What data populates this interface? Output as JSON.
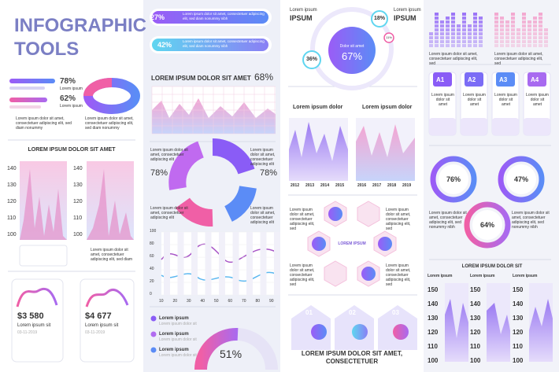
{
  "header": {
    "title": "INFOGRAPHIC TOOLS"
  },
  "stats": {
    "items": [
      {
        "value": "78%",
        "label": "Lorem ipsum"
      },
      {
        "value": "62%",
        "label": "Lorem ipsum"
      }
    ],
    "text": "Lorem ipsum dolor sit amet, consectetuer adipiscing elit, sed diam nonummy"
  },
  "tall_bars": {
    "title": "LOREM IPSUM DOLOR SIT AMET",
    "yticks": [
      140,
      130,
      120,
      110,
      100
    ],
    "text": "Lorem ipsum dolor sit amet, consectetuer adipiscing elit, sed diam"
  },
  "cards": [
    {
      "amount": "$3 580",
      "label": "Lorem ipsum sit",
      "date": "03-11-2019"
    },
    {
      "amount": "$4 677",
      "label": "Lorem ipsum sit",
      "date": "03-11-2019"
    }
  ],
  "pills": [
    {
      "value": "27%",
      "text": "Lorem ipsum dolor sit amet, consectetuer adipiscing elit, sed diam nonummy nibh"
    },
    {
      "value": "42%",
      "text": "Lorem ipsum dolor sit amet, consectetuer adipiscing elit, sed diam nonummy nibh"
    }
  ],
  "wave": {
    "title": "LOREM IPSUM DOLOR SIT AMET",
    "value": "68%"
  },
  "donut": {
    "left": "78%",
    "right": "78%",
    "text": "Lorem ipsum dolor sit amet, consectetuer adipiscing elit"
  },
  "line_chart": {
    "xticks": [
      10,
      20,
      30,
      40,
      50,
      60,
      70,
      80,
      90
    ],
    "yticks": [
      100,
      80,
      60,
      40,
      20,
      0
    ],
    "text": "Lorem ipsum dolor sit amet, consectetuer adipiscing elit, sed diam"
  },
  "legend": {
    "items": [
      "Lorem ipsum",
      "Lorem ipsum",
      "Lorem ipsum"
    ],
    "sub": "Lorem ipsum dolor sit",
    "value": "51%"
  },
  "hub": {
    "label": "Lorem ipsum",
    "title": "IPSUM",
    "center_text": "Dolor sit amet",
    "center": "67%",
    "small": [
      "36%",
      "18%",
      "11%"
    ]
  },
  "areas": [
    {
      "title": "Lorem ipsum dolor",
      "years": [
        "2012",
        "2013",
        "2014",
        "2015"
      ]
    },
    {
      "title": "Lorem ipsum dolor",
      "years": [
        "2016",
        "2017",
        "2018",
        "2019"
      ]
    }
  ],
  "hexagons": {
    "title": "LOREM IPSUM",
    "text": "Lorem ipsum dolor sit amet, consectetuer adipiscing elit, sed"
  },
  "steps": {
    "numbers": [
      "01",
      "02",
      "03"
    ],
    "title": "LOREM IPSUM DOLOR SIT AMET,",
    "subtitle": "CONSECTETUER"
  },
  "bar_panels": {
    "text": "Lorem ipsum dolor sit amet, consectetuer adipiscing elit, sed"
  },
  "tabs": {
    "labels": [
      "A1",
      "A2",
      "A3",
      "A4"
    ],
    "text": "Lorem ipsum dolor sit amet"
  },
  "gears": {
    "values": [
      "76%",
      "47%",
      "64%"
    ],
    "text": "Lorem ipsum dolor sit amet, consectetuer adipiscing elit, sed nonummy nibh"
  },
  "columns": {
    "title": "LOREM IPSUM DOLOR SIT",
    "labels": [
      "Lorem ipsum",
      "Lorem ipsum",
      "Lorem ipsum"
    ],
    "yticks": [
      150,
      140,
      130,
      120,
      110,
      100
    ]
  }
}
